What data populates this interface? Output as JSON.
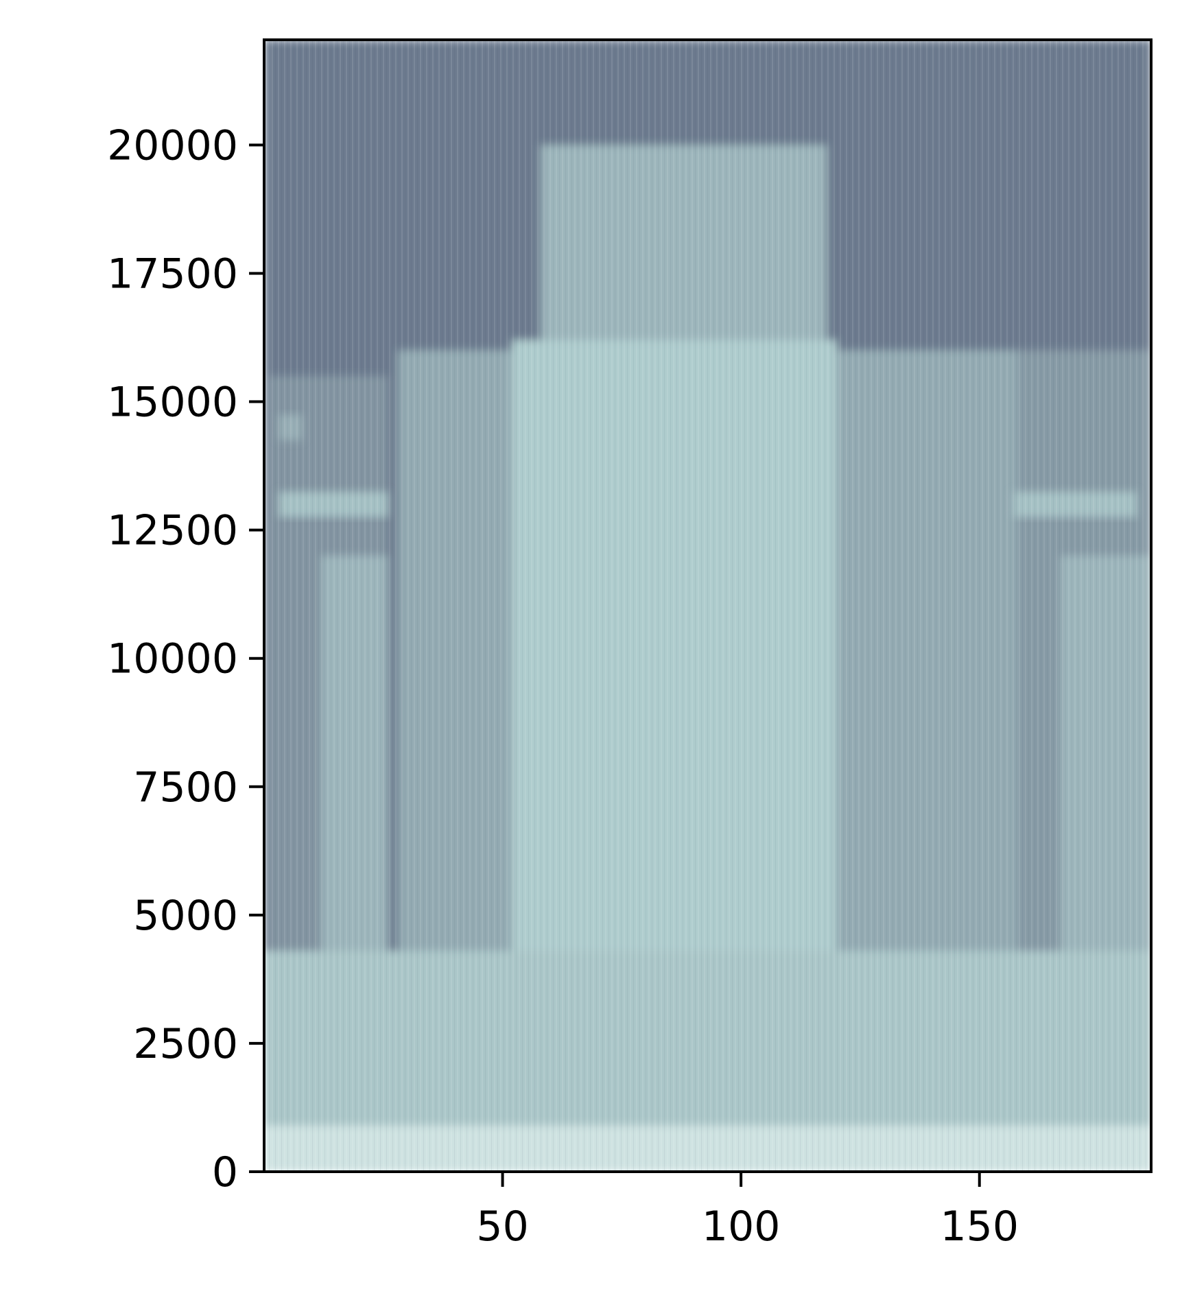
{
  "chart_data": {
    "type": "heatmap",
    "title": "",
    "xlabel": "",
    "ylabel": "",
    "xlim": [
      0,
      186
    ],
    "ylim": [
      0,
      22050
    ],
    "grid": false,
    "legend": "none",
    "x_ticks": [
      {
        "value": 50,
        "label": "50"
      },
      {
        "value": 100,
        "label": "100"
      },
      {
        "value": 150,
        "label": "150"
      }
    ],
    "y_ticks": [
      {
        "value": 0,
        "label": "0"
      },
      {
        "value": 2500,
        "label": "2500"
      },
      {
        "value": 5000,
        "label": "5000"
      },
      {
        "value": 7500,
        "label": "7500"
      },
      {
        "value": 10000,
        "label": "10000"
      },
      {
        "value": 12500,
        "label": "12500"
      },
      {
        "value": 15000,
        "label": "15000"
      },
      {
        "value": 17500,
        "label": "17500"
      },
      {
        "value": 20000,
        "label": "20000"
      }
    ],
    "colors": {
      "low": "#6c7a8e",
      "mid": "#8fa4ad",
      "high": "#aecccd",
      "peak": "#e4f0ef",
      "frame": "#000000"
    },
    "regions": [
      {
        "x": [
          0,
          186
        ],
        "y": [
          0,
          22050
        ],
        "level": 0.0
      },
      {
        "x": [
          1,
          26
        ],
        "y": [
          0,
          15500
        ],
        "level": 0.25
      },
      {
        "x": [
          12,
          26
        ],
        "y": [
          0,
          12000
        ],
        "level": 0.55
      },
      {
        "x": [
          28,
          58
        ],
        "y": [
          0,
          16000
        ],
        "level": 0.45
      },
      {
        "x": [
          58,
          118
        ],
        "y": [
          0,
          20000
        ],
        "level": 0.55
      },
      {
        "x": [
          52,
          120
        ],
        "y": [
          0,
          16200
        ],
        "level": 0.75
      },
      {
        "x": [
          120,
          158
        ],
        "y": [
          0,
          16000
        ],
        "level": 0.45
      },
      {
        "x": [
          158,
          186
        ],
        "y": [
          0,
          16000
        ],
        "level": 0.3
      },
      {
        "x": [
          167,
          186
        ],
        "y": [
          0,
          12000
        ],
        "level": 0.55
      },
      {
        "x": [
          0,
          186
        ],
        "y": [
          0,
          4300
        ],
        "level": 0.7
      },
      {
        "x": [
          0,
          186
        ],
        "y": [
          0,
          900
        ],
        "level": 0.9
      }
    ],
    "bands": [
      {
        "x": [
          3,
          26
        ],
        "y": 13000,
        "level": 0.65
      },
      {
        "x": [
          157,
          183
        ],
        "y": 13000,
        "level": 0.65
      },
      {
        "x": [
          3,
          8
        ],
        "y": 14500,
        "level": 0.5
      }
    ]
  }
}
